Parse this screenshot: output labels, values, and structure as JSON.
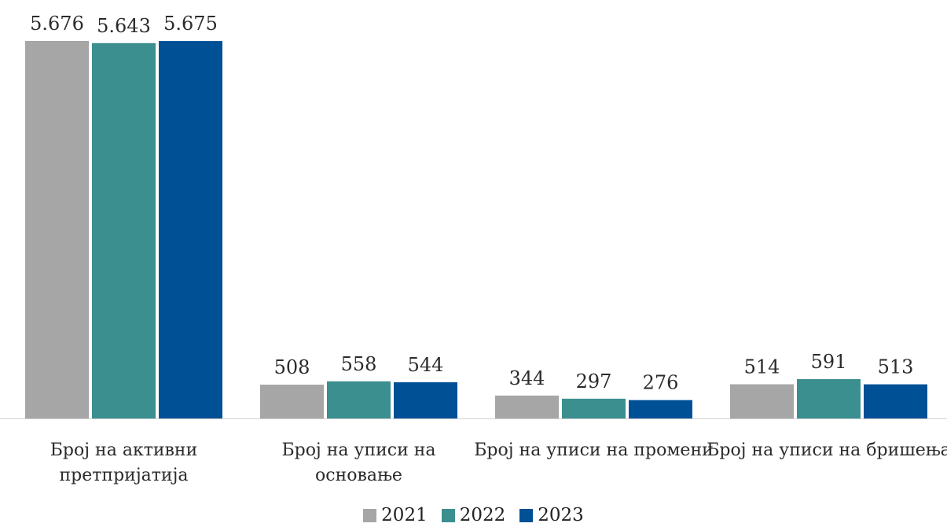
{
  "chart_data": {
    "type": "bar",
    "categories": [
      [
        "Број на активни",
        "претпријатија"
      ],
      [
        "Број на уписи на",
        "основање"
      ],
      [
        "Број на уписи на промени"
      ],
      [
        "Број на уписи на бришења"
      ]
    ],
    "series": [
      {
        "name": "2021",
        "color": "#a6a6a6",
        "values": [
          5676,
          508,
          344,
          514
        ],
        "labels": [
          "5.676",
          "508",
          "344",
          "514"
        ]
      },
      {
        "name": "2022",
        "color": "#3b8f8f",
        "values": [
          5643,
          558,
          297,
          591
        ],
        "labels": [
          "5.643",
          "558",
          "297",
          "591"
        ]
      },
      {
        "name": "2023",
        "color": "#005096",
        "values": [
          5675,
          544,
          276,
          513
        ],
        "labels": [
          "5.675",
          "544",
          "276",
          "513"
        ]
      }
    ],
    "title": "",
    "xlabel": "",
    "ylabel": "",
    "ylim": [
      0,
      5676
    ],
    "grid": false,
    "legend": "bottom"
  }
}
